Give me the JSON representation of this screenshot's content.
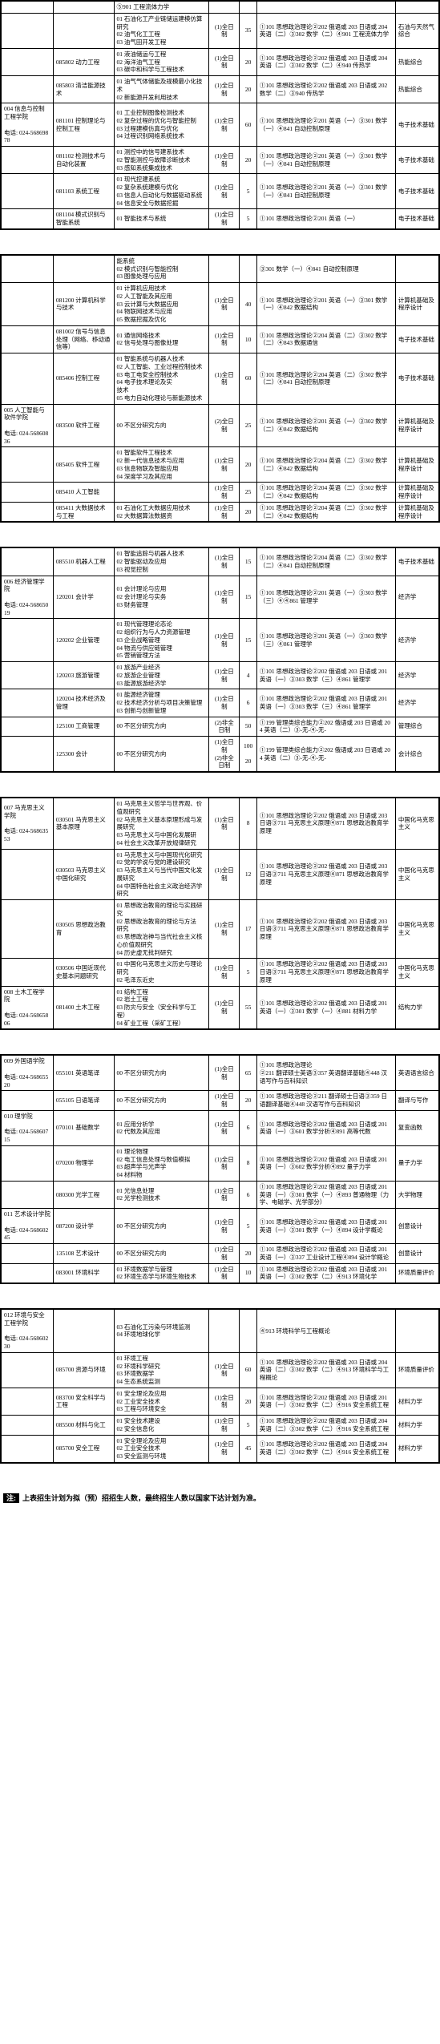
{
  "note_label": "注:",
  "note_text": "上表招生计划为拟（预）招招生人数，最终招生人数以国家下达计划为准。",
  "sections": [
    {
      "rows": [
        {
          "dept": "",
          "major": "",
          "dir_pre": "⑤901 工程流体力学",
          "type": "",
          "num": "",
          "exam": "",
          "retest": ""
        },
        {
          "dept": "",
          "major": "",
          "dir": "01 石油化工产业链储运建模仿算研究\n02 油气化工工程\n03 油气田开发工程",
          "type": "(1)全日制",
          "num": "35",
          "exam": "①101 思想政治理论②202 俄语或 203 日语或 204 英语（二）③302 数学（二）④901 工程流体力学",
          "retest": "石油与天然气综合"
        },
        {
          "dept": "",
          "major": "085802 动力工程",
          "dir": "01 液油储运与工程\n02 海洋油气工程\n03 碳中和科学与工程技术",
          "type": "(1)全日制",
          "num": "20",
          "exam": "①101 思想政治理论②202 俄语或 203 日语或 204 英语（二）③302 数学（二）④940 传热学",
          "retest": "热能综合"
        },
        {
          "dept": "",
          "major": "085803 清洁能源技术",
          "dir": "01 油气气体储能及规模最小化技术\n02 新能源开发利用技术",
          "type": "(1)全日制",
          "num": "20",
          "exam": "①101 思想政治理论②202 俄语或 203 日语或 202 数学（二）③940 传热学",
          "retest": "热能综合"
        },
        {
          "dept": "004 信息与控制工程学院\n\n电话: 024-56869878",
          "major": "081101 控制理论与控制工程",
          "dir": "01 工业控制图像检测技术\n02 复杂过程的优化与智能控制\n03 过程建模仿真与优化\n04 过程识别网络系统技术",
          "type": "(1)全日制",
          "num": "60",
          "exam": "①101 思想政治理论②201 英语（一）③301 数学（一）④841 自动控制原理",
          "retest": "电子技术基础"
        },
        {
          "dept": "",
          "major": "081102 检测技术与自动化装置",
          "dir": "01 测控中的信号建系技术\n02 智能测控与故障诊断技术\n03 感知系统集成技术",
          "type": "(1)全日制",
          "num": "20",
          "exam": "①101 思想政治理论②201 英语（一）③301 数学（一）④841 自动控制原理",
          "retest": "电子技术基础"
        },
        {
          "dept": "",
          "major": "081103 系统工程",
          "dir": "01 现代控建系统\n02 复杂系统建模与优化\n03 信息人自动化与数据驱动系统\n04 信息安全与数据挖掘",
          "type": "(1)全日制",
          "num": "5",
          "exam": "①101 思想政治理论②201 英语（一）③301 数学（一）④841 自动控制原理",
          "retest": "电子技术基础"
        },
        {
          "dept": "",
          "major": "081104 模式识别与智能系统",
          "dir": "01 智能技术与系统",
          "type": "(1)全日制",
          "num": "5",
          "exam": "①101 思想政治理论②201 英语（一）",
          "retest": "电子技术基础"
        }
      ]
    },
    {
      "rows": [
        {
          "dept": "",
          "major": "",
          "dir_top": "能系统",
          "dir": "02 模式识别与智能控制\n03 图像处理与应用",
          "type": "",
          "num": "",
          "exam": "③301 数学（一）④841 自动控制原理",
          "retest": ""
        },
        {
          "dept": "",
          "major": "081200 计算机科学与技术",
          "dir": "01 计算机应用技术\n02 人工智能及其应用\n03 云计算与大数据应用\n04 物联网技术与应用\n05 数据挖掘及优化",
          "type": "(1)全日制",
          "num": "40",
          "exam": "①101 思想政治理论②201 英语（一）③301 数学（一）④842 数据结构",
          "retest": "计算机基础及程序设计"
        },
        {
          "dept": "",
          "major": "081002 信号与信息处理（网络、移动通信等）",
          "dir": "01 通信网络技术\n02 信号处理与图像处理",
          "type": "(1)全日制",
          "num": "10",
          "exam": "①101 思想政治理论②204 英语（二）③302 数学（二）④843 数据通信",
          "retest": "电子技术基础"
        },
        {
          "dept": "",
          "major": "085406 控制工程",
          "dir": "01 智能系统与机器人技术\n02 人工智能、工业过程控制技术\n03 电工电安全控制技术\n04 电子技术理论及实\n技术\n05 电力自动化理论与新能源技术",
          "type": "(1)全日制",
          "num": "60",
          "exam": "①101 思想政治理论②204 英语（二）③302 数学（二）④841 自动控制原理",
          "retest": "电子技术基础"
        },
        {
          "dept": "005 人工智能与软件学院\n\n电话: 024-56860836",
          "major": "083500 软件工程",
          "dir": "00 不区分研究方向",
          "type": "(2)全日制",
          "num": "25",
          "exam": "①101 思想政治理论②201 英语（一）③302 数学（二）④842 数据结构",
          "retest": "计算机基础及程序设计"
        },
        {
          "dept": "",
          "major": "085405 软件工程",
          "dir": "01 智能软件工程技术\n02 新一代信息技术与应用\n03 信息物联及智能应用\n04 深度学习及其应用",
          "type": "(1)全日制",
          "num": "20",
          "exam": "①101 思想政治理论②204 英语（二）③302 数学（二）④842 数据结构",
          "retest": "计算机基础及程序设计"
        },
        {
          "dept": "",
          "major": "085410 人工智能",
          "dir": "",
          "type": "(1)全日制",
          "num": "25",
          "exam": "①101 思想政治理论②204 英语（二）③302 数学（二）④842 数据结构",
          "retest": "计算机基础及程序设计"
        },
        {
          "dept": "",
          "major": "085411 大数据技术与工程",
          "dir": "01 石油化工大数据应用技术\n02 大数据算法数据资",
          "type": "(1)全日制",
          "num": "20",
          "exam": "①101 思想政治理论②204 英语（二）③302 数学（二）④842 数据结构",
          "retest": "计算机基础及程序设计"
        }
      ]
    },
    {
      "rows": [
        {
          "dept": "",
          "major": "085510 机器人工程",
          "dir": "01 智能追踪与机器人技术\n02 智能驱动及应用\n03 视觉控制",
          "type": "(1)全日制",
          "num": "15",
          "exam": "①101 思想政治理论②204 英语（二）③302 数学（二）④841 自动控制原理",
          "retest": "电子技术基础"
        },
        {
          "dept": "006 经济管理学院\n\n电话: 024-56865019",
          "major": "120201 会计学",
          "dir": "01 会计理论与应用\n02 会计理论与实务\n03 财务管理",
          "type": "(1)全日制",
          "num": "15",
          "exam": "①101 思想政治理论②201 英语（一）③303 数学（三）④④861 管理学",
          "retest": "经济学"
        },
        {
          "dept": "",
          "major": "120202 企业管理",
          "dir": "01 现代管理理论态论\n02 组织行为与人力资源管理\n03 企业战略管理\n04 物流与供应链管理\n05 营销管理方法",
          "type": "(1)全日制",
          "num": "15",
          "exam": "①101 思想政治理论②201 英语（一）③303 数学（三）④861 管理学",
          "retest": "经济学"
        },
        {
          "dept": "",
          "major": "120203 旅游管理",
          "dir": "01 旅游产业经济\n02 旅游企业管理\n03 能源旅游经济学",
          "type": "(1)全日制",
          "num": "4",
          "exam": "①101 思想政治理论②202 俄语或 203 日语或 201 英语（一）③303 数学（三）④861 管理学",
          "retest": "经济学"
        },
        {
          "dept": "",
          "major": "120204 技术经济及管理",
          "dir": "01 能源经济管理\n02 技术经济分析与项目决策管理\n03 创新与创新管理",
          "type": "(1)全日制",
          "num": "6",
          "exam": "①101 思想政治理论②202 俄语或 203 日语或 201 英语（一）③303 数学（三）④861 管理学",
          "retest": "经济学"
        },
        {
          "dept": "",
          "major": "125100 工商管理",
          "dir": "00 不区分研究方向",
          "type": "(2)非全日制",
          "num": "50",
          "exam": "①199 管理类综合能力②202 俄语或 203 日语或 204 英语（二）③-无-④-无-",
          "retest": "管理综合"
        },
        {
          "dept": "",
          "major": "125300 会计",
          "dir": "00 不区分研究方向",
          "type": "(1)全日制\n(2)非全日制",
          "num": "100\n\n20",
          "exam": "①199 管理类综合能力②202 俄语或 203 日语或 204 英语（二）③-无-④-无-",
          "retest": "会计综合"
        }
      ]
    },
    {
      "rows": [
        {
          "dept": "007 马克思主义学院\n\n电话: 024-56863553",
          "major": "030501 马克思主义基本原理",
          "dir": "01 马克思主义哲学与世界观、价值观研究\n02 马克思主义基本原理形成与发展研究\n03 马克思主义与中国化发展研\n04 社会主义改革开放规律研究",
          "type": "(1)全日制",
          "num": "8",
          "exam": "①101 思想政治理论②202 俄语或 203 日语或 203 日语③711 马克思主义原理④871 思想政治教育学原理",
          "retest": "中国化马克思主义"
        },
        {
          "dept": "",
          "major": "030503 马克思主义中国化研究",
          "dir": "01 马克思主义与中国现代化研究\n02 党的学说与党的建设研究\n03 马克思主义与当代中国文化发展研究\n04 中国特色社会主义政治经济学研究",
          "type": "(1)全日制",
          "num": "12",
          "exam": "①101 思想政治理论②202 俄语或 203 日语或 203 日语③711 马克思主义原理④871 思想政治教育学原理",
          "retest": "中国化马克思主义"
        },
        {
          "dept": "",
          "major": "030505 思想政治教育",
          "dir": "01 思想政治教育的理论与实践研究\n02 思想政治教育的理论与方法\n研究\n03 思想政治神与当代社会主义核心价值观研究\n04 历史虚无批判研究",
          "type": "(1)全日制",
          "num": "17",
          "exam": "①101 思想政治理论②202 俄语或 203 日语或 203 日语③711 马克思主义原理④871 思想政治教育学原理",
          "retest": "中国化马克思主义"
        },
        {
          "dept": "",
          "major": "030506 中国近现代史基本问题研究",
          "dir": "01 中国化马克思主义历史与理论研究\n02 毛泽东近史",
          "type": "(1)全日制",
          "num": "5",
          "exam": "①101 思想政治理论②202 俄语或 203 日语或 203 日语③711 马克思主义原理④871 思想政治教育学原理",
          "retest": "中国化马克思主义"
        },
        {
          "dept": "008 土木工程学院\n\n电话: 024-56865806",
          "major": "081400 土木工程",
          "dir": "01 结构工程\n02 岩土工程\n03 防灾与安全（安全科学与工程）\n04 矿业工程（采矿工程）",
          "type": "(1)全日制",
          "num": "55",
          "exam": "①101 思想政治理论②202 俄语或 203 日语或 201 英语（一）③301 数学（一）④881 材料力学",
          "retest": "结构力学"
        }
      ]
    },
    {
      "rows": [
        {
          "dept": "009 外国语学院\n\n电话: 024-56865520",
          "major": "055101 英语笔译",
          "dir": "00 不区分研究方向",
          "type": "(1)全日制",
          "num": "65",
          "exam": "①101 思想政治理论\n②211 翻译硕士英语③357 英语翻译基础④448 汉语写作与百科知识",
          "retest": "英语语言综合"
        },
        {
          "dept": "",
          "major": "055105 日语笔译",
          "dir": "00 不区分研究方向",
          "type": "(1)全日制",
          "num": "20",
          "exam": "①101 思想政治理论②211 翻译硕士日语③359 日语翻译基础④448 汉语写作与百科知识",
          "retest": "翻译与写作"
        },
        {
          "dept": "010 理学院\n\n电话: 024-56860715",
          "major": "070101 基础数学",
          "dir": "01 应用分析学\n02 代数及其应用",
          "type": "(1)全日制",
          "num": "6",
          "exam": "①101 思想政治理论②202 俄语或 203 日语或 201 英语（一）③601 数学分析④891 高等代数",
          "retest": "复变函数"
        },
        {
          "dept": "",
          "major": "070200 物理学",
          "dir": "01 理论物理\n02 电工信息处理与数值模拟\n03 超声学与光声学\n04 材料物\n",
          "type": "(1)全日制",
          "num": "8",
          "exam": "①101 思想政治理论②202 俄语或 203 日语或 201 英语（一）③602 数学分析④892 量子力学",
          "retest": "量子力学"
        },
        {
          "dept": "",
          "major": "080300 光学工程",
          "dir": "01 光信息处理\n02 光学检测技术",
          "type": "(1)全日制",
          "num": "6",
          "exam": "①101 思想政治理论②202 俄语或 203 日语或 201 英语（一）③301 数学（一）④893 普通物理（力学、电磁学、光学部分）",
          "retest": "大学物理"
        },
        {
          "dept": "011 艺术设计学院\n\n电话: 024-56860245",
          "major": "087200 设计学",
          "dir": "00 不区分研究方向",
          "type": "(1)全日制",
          "num": "5",
          "exam": "①101 思想政治理论②202 俄语或 203 日语或 201 英语（一）③301 数学（一）④894 设计学概论",
          "retest": "创意设计"
        },
        {
          "dept": "",
          "major": "135108 艺术设计",
          "dir": "00 不区分研究方向",
          "type": "(1)全日制",
          "num": "20",
          "exam": "①101 思想政治理论②202 俄语或 203 日语或 201 英语（一）③337 工业设计工程④894 设计学概论",
          "retest": "创意设计"
        },
        {
          "dept": "",
          "major": "083001 环境科学",
          "dir": "01 环境数据学与管理\n02 环境生态学与环境生物技术",
          "type": "(1)全日制",
          "num": "10",
          "exam": "①101 思想政治理论②202 俄语或 203 日语或 201 英语（一）③302 数学（二）④913 环境化学",
          "retest": "环境质量评价"
        }
      ]
    },
    {
      "rows": [
        {
          "dept": "012 环境与安全工程学院\n\n电话: 024-56860230",
          "major": "",
          "dir": "03 石油化工污染与环境监测\n04 环境地球化学",
          "type": "",
          "num": "",
          "exam": "④913 环境科学与工程概论",
          "retest": ""
        },
        {
          "dept": "",
          "major": "085700 资源与环境",
          "dir": "01 环境工程\n02 环境科学研究\n03 环境数据学\n04 生态系统监测",
          "type": "(1)全日制",
          "num": "60",
          "exam": "①101 思想政治理论②202 俄语或 203 日语或 204 英语（二）③302 数学（二）④913 环境科学与工程概论",
          "retest": "环境质量评价"
        },
        {
          "dept": "",
          "major": "083700 安全科学与工程",
          "dir": "01 安全理论及应用\n02 工业安全技术\n03 工程与环境安全",
          "type": "(1)全日制",
          "num": "20",
          "exam": "①101 思想政治理论②202 俄语或 203 日语或 201 英语（一）③302 数学（二）④916 安全系统工程",
          "retest": "材料力学"
        },
        {
          "dept": "",
          "major": "085500 材料与化工",
          "dir": "01 安全技术建设\n02 安全信息化",
          "type": "(1)全日制",
          "num": "5",
          "exam": "①101 思想政治理论②202 俄语或 203 日语或 204 英语（二）③302 数学（二）④916 安全系统工程",
          "retest": "材料力学"
        },
        {
          "dept": "",
          "major": "085700 安全工程",
          "dir": "01 安全理论及应用\n02 工业安全技术\n03 安全监测与环境",
          "type": "(1)全日制",
          "num": "45",
          "exam": "①101 思想政治理论②202 俄语或 203 日语或 204 英语（二）③302 数学（二）④916 安全系统工程",
          "retest": "材料力学"
        }
      ]
    }
  ]
}
